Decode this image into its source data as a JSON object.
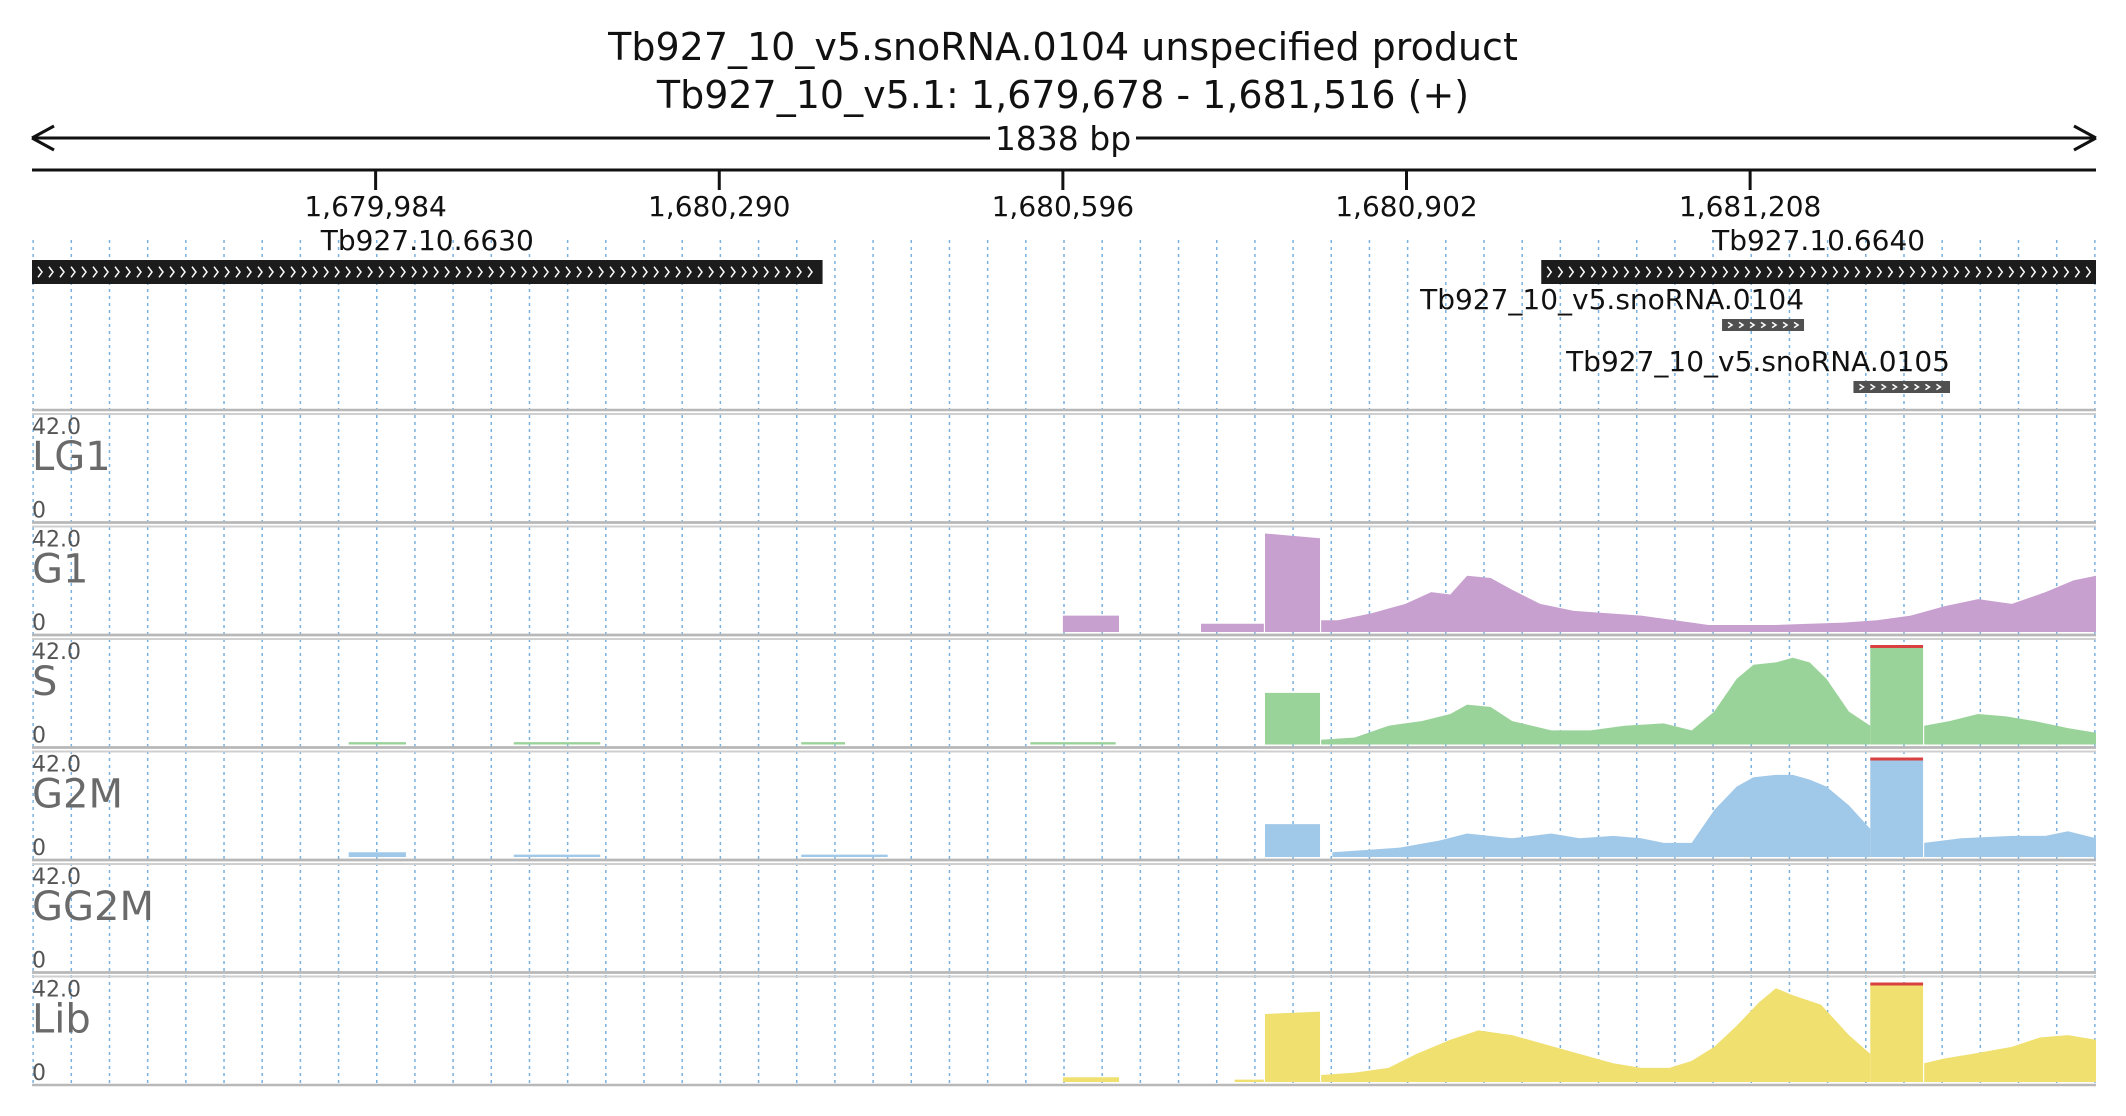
{
  "chart_data": {
    "type": "area",
    "title": "Tb927_10_v5.snoRNA.0104  unspecified product",
    "subtitle": "Tb927_10_v5.1: 1,679,678 - 1,681,516 (+)",
    "span_label": "1838 bp",
    "xlim": [
      1679678,
      1681516
    ],
    "x_ticks": [
      {
        "value": 1679984,
        "label": "1,679,984"
      },
      {
        "value": 1680290,
        "label": "1,680,290"
      },
      {
        "value": 1680596,
        "label": "1,680,596"
      },
      {
        "value": 1680902,
        "label": "1,680,902"
      },
      {
        "value": 1681208,
        "label": "1,681,208"
      }
    ],
    "features": [
      {
        "label": "Tb927.10.6630",
        "start": 1679678,
        "end": 1680382,
        "color": "#1c1c1c",
        "row": 0
      },
      {
        "label": "Tb927.10.6640",
        "start": 1681022,
        "end": 1681516,
        "color": "#1c1c1c",
        "row": 0
      },
      {
        "label": "Tb927_10_v5.snoRNA.0104",
        "start": 1681183,
        "end": 1681256,
        "color": "#505050",
        "row": 1
      },
      {
        "label": "Tb927_10_v5.snoRNA.0105",
        "start": 1681300,
        "end": 1681386,
        "color": "#505050",
        "row": 2
      }
    ],
    "ylim": [
      0,
      42.0
    ],
    "y_max_label": "42.0",
    "y_min_label": "0",
    "overflow_color": "#d94040",
    "tracks": [
      {
        "name": "LG1",
        "color": "#c8a0d0",
        "segments": []
      },
      {
        "name": "G1",
        "color": "#c8a0d0",
        "segments": [
          {
            "x": [
              1680596,
              1680646
            ],
            "y": [
              7,
              7
            ]
          },
          {
            "x": [
              1680719,
              1680775
            ],
            "y": [
              3.5,
              3.5
            ]
          },
          {
            "x": [
              1680776,
              1680825
            ],
            "y": [
              42,
              40
            ]
          },
          {
            "x": [
              1680826,
              1680841,
              1680871,
              1680901,
              1680924,
              1680941,
              1680956,
              1680977,
              1680996,
              1681021,
              1681051,
              1681081,
              1681111,
              1681141,
              1681171,
              1681201,
              1681231,
              1681261,
              1681291,
              1681321,
              1681351,
              1681381,
              1681411,
              1681441,
              1681471,
              1681496,
              1681516
            ],
            "y": [
              5,
              5,
              8,
              12,
              17,
              16,
              24,
              23,
              18,
              12,
              9,
              8,
              7,
              5,
              3,
              3,
              3,
              3.5,
              4,
              5,
              7,
              11,
              14,
              12,
              17,
              22,
              24
            ]
          }
        ]
      },
      {
        "name": "S",
        "color": "#99d399",
        "segments": [
          {
            "x": [
              1679960,
              1680011
            ],
            "y": [
              1,
              1
            ]
          },
          {
            "x": [
              1680107,
              1680184
            ],
            "y": [
              1,
              1
            ]
          },
          {
            "x": [
              1680363,
              1680402
            ],
            "y": [
              1,
              1
            ]
          },
          {
            "x": [
              1680567,
              1680643
            ],
            "y": [
              1,
              1
            ]
          },
          {
            "x": [
              1680776,
              1680825
            ],
            "y": [
              22,
              22
            ]
          },
          {
            "x": [
              1680826,
              1680856,
              1680886,
              1680916,
              1680941,
              1680956,
              1680977,
              1680996,
              1681031,
              1681066,
              1681096,
              1681131,
              1681156,
              1681176,
              1681196,
              1681211,
              1681231,
              1681246,
              1681261,
              1681276,
              1681296,
              1681315
            ],
            "y": [
              2,
              3,
              8,
              10,
              13,
              17,
              16,
              10,
              6,
              6,
              8,
              9,
              6,
              14,
              28,
              34,
              35,
              37,
              35,
              28,
              14,
              8
            ]
          },
          {
            "x": [
              1681315,
              1681362
            ],
            "y": [
              42,
              42
            ]
          },
          {
            "x": [
              1681363,
              1681386,
              1681411,
              1681436,
              1681461,
              1681491,
              1681516
            ],
            "y": [
              8,
              10,
              13,
              12,
              10,
              7,
              5
            ]
          }
        ]
      },
      {
        "name": "G2M",
        "color": "#a0c8e8",
        "segments": [
          {
            "x": [
              1679960,
              1680011
            ],
            "y": [
              2,
              2
            ]
          },
          {
            "x": [
              1680107,
              1680184
            ],
            "y": [
              1,
              1
            ]
          },
          {
            "x": [
              1680363,
              1680440
            ],
            "y": [
              1,
              1
            ]
          },
          {
            "x": [
              1680776,
              1680825
            ],
            "y": [
              14,
              14
            ]
          },
          {
            "x": [
              1680836,
              1680866,
              1680896,
              1680931,
              1680956,
              1680996,
              1681031,
              1681056,
              1681086,
              1681111,
              1681131,
              1681156,
              1681176,
              1681196,
              1681211,
              1681231,
              1681246,
              1681261,
              1681276,
              1681296,
              1681315
            ],
            "y": [
              2,
              3,
              4,
              7,
              10,
              8,
              10,
              8,
              9,
              8,
              6,
              6,
              20,
              30,
              34,
              35,
              35,
              33,
              30,
              22,
              12
            ]
          },
          {
            "x": [
              1681315,
              1681362
            ],
            "y": [
              42,
              42
            ]
          },
          {
            "x": [
              1681363,
              1681396,
              1681441,
              1681471,
              1681491,
              1681516
            ],
            "y": [
              6,
              8,
              9,
              9,
              11,
              8
            ]
          }
        ]
      },
      {
        "name": "GG2M",
        "color": "#a0c8e8",
        "segments": []
      },
      {
        "name": "Lib",
        "color": "#f0e070",
        "segments": [
          {
            "x": [
              1680596,
              1680646
            ],
            "y": [
              2,
              2
            ]
          },
          {
            "x": [
              1680749,
              1680775
            ],
            "y": [
              1,
              1
            ]
          },
          {
            "x": [
              1680776,
              1680825
            ],
            "y": [
              29,
              30
            ]
          },
          {
            "x": [
              1680826,
              1680856,
              1680886,
              1680911,
              1680941,
              1680966,
              1680996,
              1681026,
              1681056,
              1681086,
              1681111,
              1681136,
              1681156,
              1681176,
              1681196,
              1681216,
              1681231,
              1681246,
              1681271,
              1681296,
              1681315
            ],
            "y": [
              3,
              4,
              6,
              12,
              18,
              22,
              20,
              16,
              12,
              8,
              6,
              6,
              9,
              15,
              24,
              34,
              40,
              37,
              33,
              20,
              12
            ]
          },
          {
            "x": [
              1681315,
              1681362
            ],
            "y": [
              42,
              42
            ]
          },
          {
            "x": [
              1681363,
              1681381,
              1681406,
              1681441,
              1681466,
              1681491,
              1681516
            ],
            "y": [
              8,
              10,
              12,
              15,
              19,
              20,
              18
            ]
          }
        ]
      }
    ]
  }
}
